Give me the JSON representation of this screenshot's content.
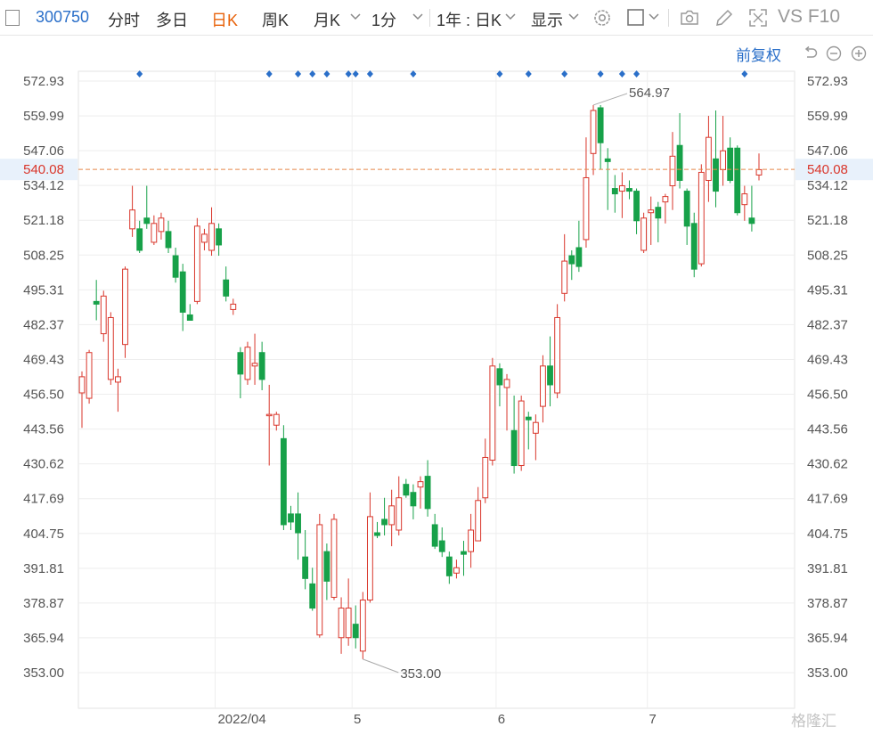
{
  "toolbar": {
    "code": "300750",
    "items": [
      "分时",
      "多日",
      "日K",
      "周K",
      "月K",
      "1分",
      "1年 : 日K",
      "显示"
    ],
    "active": "日K",
    "vs_f10": "VS F10",
    "icons": [
      "panel-icon",
      "settings-gear-icon",
      "square-icon",
      "camera-icon",
      "pen-icon",
      "fullscreen-icon"
    ]
  },
  "subbar": {
    "adjust": "前复权",
    "controls": [
      "undo-icon",
      "zoom-out-icon",
      "zoom-in-icon"
    ]
  },
  "chart_data": {
    "type": "candlestick",
    "ylim": [
      346.5,
      579.4
    ],
    "yticks": [
      "572.93",
      "559.99",
      "547.06",
      "534.12",
      "521.18",
      "508.25",
      "495.31",
      "482.37",
      "469.43",
      "456.50",
      "443.56",
      "430.62",
      "417.69",
      "404.75",
      "391.81",
      "378.87",
      "365.94",
      "353.00"
    ],
    "xticks": [
      {
        "label": "2022/04",
        "index": 19
      },
      {
        "label": "5",
        "index": 38
      },
      {
        "label": "6",
        "index": 58
      },
      {
        "label": "7",
        "index": 79
      }
    ],
    "current_price": "540.08",
    "max_label": "564.97",
    "min_label": "353.00",
    "event_marker_indices": [
      8,
      26,
      30,
      32,
      34,
      37,
      38,
      40,
      46,
      58,
      62,
      67,
      72,
      75,
      77,
      92
    ],
    "colors": {
      "up": "#d9362b",
      "down": "#17a149",
      "current": "#e8884a",
      "accent": "#2a6fc9"
    },
    "candles": [
      [
        457,
        463,
        444,
        465
      ],
      [
        455,
        472,
        453,
        473
      ],
      [
        491,
        490,
        484,
        499
      ],
      [
        479,
        493,
        476,
        495
      ],
      [
        462,
        485,
        460,
        487
      ],
      [
        461,
        463,
        450,
        466
      ],
      [
        475,
        503,
        470,
        504
      ],
      [
        518,
        525,
        515,
        534
      ],
      [
        518,
        510,
        509,
        521
      ],
      [
        522,
        520,
        518,
        534
      ],
      [
        513,
        520,
        512,
        523
      ],
      [
        517,
        522,
        514,
        524
      ],
      [
        517,
        511,
        509,
        521
      ],
      [
        508,
        500,
        498,
        511
      ],
      [
        502,
        487,
        480,
        505
      ],
      [
        486,
        484,
        485,
        490
      ],
      [
        491,
        519,
        490,
        522
      ],
      [
        513,
        516,
        510,
        518
      ],
      [
        510,
        520,
        508,
        526
      ],
      [
        518,
        512,
        508,
        520
      ],
      [
        499,
        493,
        491,
        504
      ],
      [
        488,
        490,
        486,
        492
      ],
      [
        472,
        464,
        455,
        474
      ],
      [
        462,
        474,
        460,
        476
      ],
      [
        467,
        468,
        460,
        479
      ],
      [
        472,
        462,
        458,
        476
      ],
      [
        449,
        449,
        430,
        460
      ],
      [
        445,
        449,
        443,
        450
      ],
      [
        440,
        408,
        406,
        445
      ],
      [
        412,
        409,
        406,
        415
      ],
      [
        412,
        405,
        395,
        420
      ],
      [
        396,
        388,
        384,
        406
      ],
      [
        386,
        377,
        376,
        392
      ],
      [
        367,
        408,
        366,
        412
      ],
      [
        398,
        387,
        380,
        401
      ],
      [
        381,
        410,
        380,
        412
      ],
      [
        366,
        377,
        360,
        381
      ],
      [
        366,
        377,
        363,
        388
      ],
      [
        371,
        366,
        362,
        378
      ],
      [
        361,
        380,
        358,
        383
      ],
      [
        380,
        411,
        379,
        420
      ],
      [
        405,
        404,
        403,
        409
      ],
      [
        410,
        408,
        404,
        418
      ],
      [
        408,
        415,
        400,
        421
      ],
      [
        406,
        418,
        404,
        426
      ],
      [
        423,
        419,
        418,
        425
      ],
      [
        420,
        415,
        410,
        423
      ],
      [
        422,
        424,
        414,
        426
      ],
      [
        426,
        414,
        411,
        432
      ],
      [
        408,
        400,
        399,
        412
      ],
      [
        402,
        398,
        396,
        407
      ],
      [
        396,
        389,
        386,
        398
      ],
      [
        390,
        392,
        388,
        395
      ],
      [
        398,
        397,
        389,
        402
      ],
      [
        398,
        406,
        392,
        412
      ],
      [
        402,
        417,
        402,
        422
      ],
      [
        418,
        433,
        416,
        440
      ],
      [
        432,
        467,
        430,
        470
      ],
      [
        466,
        460,
        452,
        468
      ],
      [
        459,
        462,
        443,
        464
      ],
      [
        443,
        430,
        427,
        456
      ],
      [
        430,
        454,
        428,
        456
      ],
      [
        448,
        447,
        436,
        450
      ],
      [
        442,
        446,
        432,
        449
      ],
      [
        452,
        467,
        446,
        471
      ],
      [
        467,
        460,
        452,
        478
      ],
      [
        457,
        485,
        455,
        490
      ],
      [
        494,
        506,
        491,
        516
      ],
      [
        508,
        505,
        499,
        510
      ],
      [
        511,
        504,
        502,
        521
      ],
      [
        514,
        537,
        511,
        552
      ],
      [
        546,
        562,
        538,
        564
      ],
      [
        563,
        550,
        540,
        564
      ],
      [
        544,
        543,
        525,
        548
      ],
      [
        533,
        531,
        524,
        538
      ],
      [
        532,
        534,
        522,
        539
      ],
      [
        533,
        532,
        529,
        536
      ],
      [
        532,
        521,
        516,
        533
      ],
      [
        510,
        522,
        509,
        524
      ],
      [
        524,
        525,
        512,
        530
      ],
      [
        526,
        522,
        513,
        528
      ],
      [
        528,
        530,
        520,
        531
      ],
      [
        534,
        545,
        525,
        554
      ],
      [
        549,
        536,
        533,
        561
      ],
      [
        532,
        519,
        512,
        533
      ],
      [
        520,
        503,
        500,
        524
      ],
      [
        505,
        539,
        504,
        542
      ],
      [
        536,
        552,
        528,
        560
      ],
      [
        544,
        532,
        526,
        562
      ],
      [
        540,
        547,
        534,
        560
      ],
      [
        548,
        536,
        535,
        552
      ],
      [
        548,
        524,
        523,
        549
      ],
      [
        527,
        531,
        521,
        534
      ],
      [
        522,
        520,
        517,
        534
      ],
      [
        538,
        540,
        536,
        546
      ]
    ]
  },
  "watermark": "格隆汇"
}
